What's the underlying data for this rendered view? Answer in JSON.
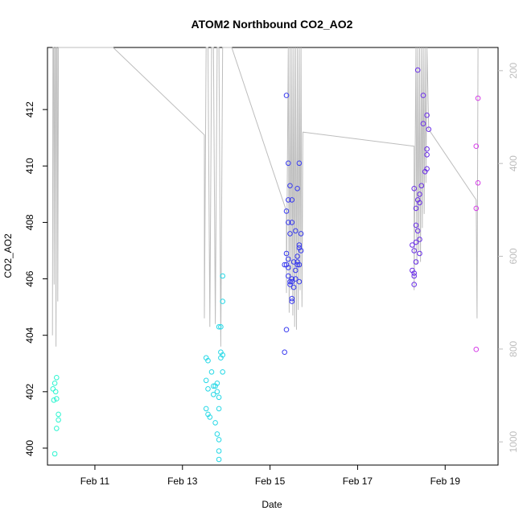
{
  "chart_data": {
    "type": "scatter",
    "title": "ATOM2 Northbound CO2_AO2",
    "xlabel": "Date",
    "ylabel": "CO2_AO2",
    "x_start": "2016-02-09T22:00",
    "x_end": "2016-02-20T05:00",
    "x_ticks": [
      {
        "label": "Feb 11",
        "date": "2016-02-11"
      },
      {
        "label": "Feb 13",
        "date": "2016-02-13"
      },
      {
        "label": "Feb 15",
        "date": "2016-02-15"
      },
      {
        "label": "Feb 17",
        "date": "2016-02-17"
      },
      {
        "label": "Feb 19",
        "date": "2016-02-19"
      }
    ],
    "ylim": [
      399.4,
      414.2
    ],
    "y_ticks": [
      400,
      402,
      404,
      406,
      408,
      410,
      412
    ],
    "right_axis": {
      "ylim": [
        1050,
        150
      ],
      "ticks": [
        200,
        400,
        600,
        800,
        1000
      ],
      "color": "#bdbdbd"
    },
    "points": [
      {
        "x": "2016-02-10T01:00",
        "y": 402.1,
        "color": "#2af5d0"
      },
      {
        "x": "2016-02-10T01:30",
        "y": 401.7,
        "color": "#2af5d0"
      },
      {
        "x": "2016-02-10T02:00",
        "y": 402.3,
        "color": "#2af5d0"
      },
      {
        "x": "2016-02-10T02:30",
        "y": 402.0,
        "color": "#2af5d0"
      },
      {
        "x": "2016-02-10T03:00",
        "y": 401.75,
        "color": "#2af5d0"
      },
      {
        "x": "2016-02-10T02:00",
        "y": 399.8,
        "color": "#2af5d0"
      },
      {
        "x": "2016-02-10T03:00",
        "y": 402.5,
        "color": "#2af5d0"
      },
      {
        "x": "2016-02-10T04:00",
        "y": 401.2,
        "color": "#2af5d0"
      },
      {
        "x": "2016-02-10T04:00",
        "y": 401.0,
        "color": "#2af5d0"
      },
      {
        "x": "2016-02-10T03:00",
        "y": 400.7,
        "color": "#2af5d0"
      },
      {
        "x": "2016-02-13T13:00",
        "y": 403.2,
        "color": "#25d8e6"
      },
      {
        "x": "2016-02-13T14:00",
        "y": 403.1,
        "color": "#25d8e6"
      },
      {
        "x": "2016-02-13T13:00",
        "y": 402.4,
        "color": "#25d8e6"
      },
      {
        "x": "2016-02-13T14:00",
        "y": 402.1,
        "color": "#25d8e6"
      },
      {
        "x": "2016-02-13T13:00",
        "y": 401.4,
        "color": "#25d8e6"
      },
      {
        "x": "2016-02-13T14:00",
        "y": 401.2,
        "color": "#25d8e6"
      },
      {
        "x": "2016-02-13T15:00",
        "y": 401.1,
        "color": "#25d8e6"
      },
      {
        "x": "2016-02-13T16:00",
        "y": 402.7,
        "color": "#25d8e6"
      },
      {
        "x": "2016-02-13T17:00",
        "y": 402.2,
        "color": "#25d8e6"
      },
      {
        "x": "2016-02-13T18:00",
        "y": 402.2,
        "color": "#25d8e6"
      },
      {
        "x": "2016-02-13T17:00",
        "y": 401.9,
        "color": "#25d8e6"
      },
      {
        "x": "2016-02-13T19:00",
        "y": 402.3,
        "color": "#25d8e6"
      },
      {
        "x": "2016-02-13T19:00",
        "y": 402.0,
        "color": "#25d8e6"
      },
      {
        "x": "2016-02-13T20:00",
        "y": 401.8,
        "color": "#25d8e6"
      },
      {
        "x": "2016-02-13T18:00",
        "y": 400.9,
        "color": "#25d8e6"
      },
      {
        "x": "2016-02-13T20:00",
        "y": 401.4,
        "color": "#25d8e6"
      },
      {
        "x": "2016-02-13T19:00",
        "y": 400.5,
        "color": "#25d8e6"
      },
      {
        "x": "2016-02-13T20:00",
        "y": 400.3,
        "color": "#25d8e6"
      },
      {
        "x": "2016-02-13T20:00",
        "y": 399.9,
        "color": "#25d8e6"
      },
      {
        "x": "2016-02-13T20:00",
        "y": 399.6,
        "color": "#25d8e6"
      },
      {
        "x": "2016-02-13T20:00",
        "y": 404.3,
        "color": "#25d8e6"
      },
      {
        "x": "2016-02-13T21:00",
        "y": 404.3,
        "color": "#25d8e6"
      },
      {
        "x": "2016-02-13T21:00",
        "y": 403.4,
        "color": "#25d8e6"
      },
      {
        "x": "2016-02-13T22:00",
        "y": 403.3,
        "color": "#25d8e6"
      },
      {
        "x": "2016-02-13T21:00",
        "y": 403.2,
        "color": "#25d8e6"
      },
      {
        "x": "2016-02-13T22:00",
        "y": 405.2,
        "color": "#25d8e6"
      },
      {
        "x": "2016-02-13T22:00",
        "y": 406.1,
        "color": "#25d8e6"
      },
      {
        "x": "2016-02-13T22:00",
        "y": 402.7,
        "color": "#25d8e6"
      },
      {
        "x": "2016-02-15T09:00",
        "y": 412.5,
        "color": "#3a3cf0"
      },
      {
        "x": "2016-02-15T10:00",
        "y": 410.1,
        "color": "#3a3cf0"
      },
      {
        "x": "2016-02-15T11:00",
        "y": 409.3,
        "color": "#3a3cf0"
      },
      {
        "x": "2016-02-15T10:00",
        "y": 408.8,
        "color": "#3a3cf0"
      },
      {
        "x": "2016-02-15T12:00",
        "y": 408.8,
        "color": "#3a3cf0"
      },
      {
        "x": "2016-02-15T09:00",
        "y": 408.4,
        "color": "#3a3cf0"
      },
      {
        "x": "2016-02-15T10:00",
        "y": 408.0,
        "color": "#3a3cf0"
      },
      {
        "x": "2016-02-15T12:00",
        "y": 408.0,
        "color": "#3a3cf0"
      },
      {
        "x": "2016-02-15T11:00",
        "y": 407.6,
        "color": "#3a3cf0"
      },
      {
        "x": "2016-02-15T09:00",
        "y": 406.9,
        "color": "#3a3cf0"
      },
      {
        "x": "2016-02-15T10:00",
        "y": 406.7,
        "color": "#3a3cf0"
      },
      {
        "x": "2016-02-15T08:00",
        "y": 406.5,
        "color": "#3a3cf0"
      },
      {
        "x": "2016-02-15T09:00",
        "y": 406.5,
        "color": "#3a3cf0"
      },
      {
        "x": "2016-02-15T10:00",
        "y": 406.4,
        "color": "#3a3cf0"
      },
      {
        "x": "2016-02-15T10:00",
        "y": 406.1,
        "color": "#3a3cf0"
      },
      {
        "x": "2016-02-15T11:00",
        "y": 405.9,
        "color": "#3a3cf0"
      },
      {
        "x": "2016-02-15T11:00",
        "y": 405.8,
        "color": "#3a3cf0"
      },
      {
        "x": "2016-02-15T12:00",
        "y": 406.0,
        "color": "#3a3cf0"
      },
      {
        "x": "2016-02-15T12:00",
        "y": 405.9,
        "color": "#3a3cf0"
      },
      {
        "x": "2016-02-15T13:00",
        "y": 405.7,
        "color": "#3a3cf0"
      },
      {
        "x": "2016-02-15T14:00",
        "y": 406.0,
        "color": "#3a3cf0"
      },
      {
        "x": "2016-02-15T14:00",
        "y": 406.3,
        "color": "#3a3cf0"
      },
      {
        "x": "2016-02-15T15:00",
        "y": 406.5,
        "color": "#3a3cf0"
      },
      {
        "x": "2016-02-15T15:00",
        "y": 406.6,
        "color": "#3a3cf0"
      },
      {
        "x": "2016-02-15T16:00",
        "y": 406.5,
        "color": "#3a3cf0"
      },
      {
        "x": "2016-02-15T13:00",
        "y": 406.6,
        "color": "#3a3cf0"
      },
      {
        "x": "2016-02-15T15:00",
        "y": 406.8,
        "color": "#3a3cf0"
      },
      {
        "x": "2016-02-15T16:00",
        "y": 407.2,
        "color": "#3a3cf0"
      },
      {
        "x": "2016-02-15T16:00",
        "y": 407.1,
        "color": "#3a3cf0"
      },
      {
        "x": "2016-02-15T17:00",
        "y": 407.0,
        "color": "#3a3cf0"
      },
      {
        "x": "2016-02-15T17:00",
        "y": 407.6,
        "color": "#3a3cf0"
      },
      {
        "x": "2016-02-15T14:00",
        "y": 407.7,
        "color": "#3a3cf0"
      },
      {
        "x": "2016-02-15T16:00",
        "y": 405.9,
        "color": "#3a3cf0"
      },
      {
        "x": "2016-02-15T15:00",
        "y": 409.2,
        "color": "#3a3cf0"
      },
      {
        "x": "2016-02-15T16:00",
        "y": 410.1,
        "color": "#3a3cf0"
      },
      {
        "x": "2016-02-15T12:00",
        "y": 405.3,
        "color": "#3a3cf0"
      },
      {
        "x": "2016-02-15T12:00",
        "y": 405.2,
        "color": "#3a3cf0"
      },
      {
        "x": "2016-02-15T09:00",
        "y": 404.2,
        "color": "#3a3cf0"
      },
      {
        "x": "2016-02-15T08:00",
        "y": 403.4,
        "color": "#3a3cf0"
      },
      {
        "x": "2016-02-18T09:00",
        "y": 413.4,
        "color": "#6a2ee8"
      },
      {
        "x": "2016-02-18T12:00",
        "y": 412.5,
        "color": "#6a2ee8"
      },
      {
        "x": "2016-02-18T12:00",
        "y": 411.5,
        "color": "#6a2ee8"
      },
      {
        "x": "2016-02-18T14:00",
        "y": 411.8,
        "color": "#6a2ee8"
      },
      {
        "x": "2016-02-18T15:00",
        "y": 411.3,
        "color": "#6a2ee8"
      },
      {
        "x": "2016-02-18T14:00",
        "y": 410.6,
        "color": "#6a2ee8"
      },
      {
        "x": "2016-02-18T14:00",
        "y": 410.4,
        "color": "#6a2ee8"
      },
      {
        "x": "2016-02-18T13:00",
        "y": 409.8,
        "color": "#6a2ee8"
      },
      {
        "x": "2016-02-18T14:00",
        "y": 409.9,
        "color": "#6a2ee8"
      },
      {
        "x": "2016-02-18T11:00",
        "y": 409.3,
        "color": "#6a2ee8"
      },
      {
        "x": "2016-02-18T07:00",
        "y": 409.2,
        "color": "#6a2ee8"
      },
      {
        "x": "2016-02-18T10:00",
        "y": 409.0,
        "color": "#6a2ee8"
      },
      {
        "x": "2016-02-18T09:00",
        "y": 408.8,
        "color": "#6a2ee8"
      },
      {
        "x": "2016-02-18T10:00",
        "y": 408.7,
        "color": "#6a2ee8"
      },
      {
        "x": "2016-02-18T08:00",
        "y": 408.5,
        "color": "#6a2ee8"
      },
      {
        "x": "2016-02-18T08:00",
        "y": 407.9,
        "color": "#6a2ee8"
      },
      {
        "x": "2016-02-18T09:00",
        "y": 407.7,
        "color": "#6a2ee8"
      },
      {
        "x": "2016-02-18T10:00",
        "y": 407.4,
        "color": "#6a2ee8"
      },
      {
        "x": "2016-02-18T08:00",
        "y": 407.3,
        "color": "#6a2ee8"
      },
      {
        "x": "2016-02-18T06:00",
        "y": 407.2,
        "color": "#6a2ee8"
      },
      {
        "x": "2016-02-18T07:00",
        "y": 407.0,
        "color": "#6a2ee8"
      },
      {
        "x": "2016-02-18T10:00",
        "y": 406.9,
        "color": "#6a2ee8"
      },
      {
        "x": "2016-02-18T08:00",
        "y": 406.6,
        "color": "#6a2ee8"
      },
      {
        "x": "2016-02-18T06:00",
        "y": 406.3,
        "color": "#6a2ee8"
      },
      {
        "x": "2016-02-18T07:00",
        "y": 406.2,
        "color": "#6a2ee8"
      },
      {
        "x": "2016-02-18T07:00",
        "y": 406.1,
        "color": "#6a2ee8"
      },
      {
        "x": "2016-02-18T07:00",
        "y": 405.8,
        "color": "#6a2ee8"
      },
      {
        "x": "2016-02-19T18:00",
        "y": 412.4,
        "color": "#d63ee8"
      },
      {
        "x": "2016-02-19T17:00",
        "y": 410.7,
        "color": "#d63ee8"
      },
      {
        "x": "2016-02-19T18:00",
        "y": 409.4,
        "color": "#d63ee8"
      },
      {
        "x": "2016-02-19T17:00",
        "y": 408.5,
        "color": "#d63ee8"
      },
      {
        "x": "2016-02-19T17:00",
        "y": 403.5,
        "color": "#d63ee8"
      }
    ],
    "grey_line_color": "#bdbdbd",
    "grey_line": [
      [
        "2016-02-10T00:45",
        404.0
      ],
      [
        "2016-02-10T01:00",
        414.2
      ],
      [
        "2016-02-10T01:20",
        414.2
      ],
      [
        "2016-02-10T01:40",
        405.8
      ],
      [
        "2016-02-10T02:00",
        414.2
      ],
      [
        "2016-02-10T02:20",
        414.2
      ],
      [
        "2016-02-10T02:40",
        403.6
      ],
      [
        "2016-02-10T03:00",
        414.2
      ],
      [
        "2016-02-10T03:20",
        414.2
      ],
      [
        "2016-02-10T03:40",
        405.2
      ],
      [
        "2016-02-10T04:00",
        414.2
      ],
      [
        "2016-02-11T10:00",
        414.2
      ],
      [
        "2016-02-13T12:00",
        411.1
      ],
      [
        "2016-02-13T12:00",
        404.6
      ],
      [
        "2016-02-13T13:00",
        414.2
      ],
      [
        "2016-02-13T14:00",
        414.2
      ],
      [
        "2016-02-13T15:00",
        404.3
      ],
      [
        "2016-02-13T16:00",
        414.2
      ],
      [
        "2016-02-13T17:00",
        414.2
      ],
      [
        "2016-02-13T18:00",
        404.4
      ],
      [
        "2016-02-13T19:00",
        414.2
      ],
      [
        "2016-02-13T20:00",
        414.2
      ],
      [
        "2016-02-13T21:00",
        403.6
      ],
      [
        "2016-02-13T22:00",
        414.2
      ],
      [
        "2016-02-14T03:00",
        414.2
      ],
      [
        "2016-02-15T09:00",
        408.4
      ],
      [
        "2016-02-15T09:00",
        405.5
      ],
      [
        "2016-02-15T10:00",
        414.2
      ],
      [
        "2016-02-15T10:30",
        404.8
      ],
      [
        "2016-02-15T11:00",
        414.2
      ],
      [
        "2016-02-15T11:30",
        405.6
      ],
      [
        "2016-02-15T12:00",
        414.2
      ],
      [
        "2016-02-15T12:30",
        404.7
      ],
      [
        "2016-02-15T13:00",
        414.2
      ],
      [
        "2016-02-15T13:30",
        404.3
      ],
      [
        "2016-02-15T14:00",
        414.2
      ],
      [
        "2016-02-15T14:30",
        404.2
      ],
      [
        "2016-02-15T15:00",
        414.2
      ],
      [
        "2016-02-15T15:30",
        404.9
      ],
      [
        "2016-02-15T16:00",
        414.2
      ],
      [
        "2016-02-15T16:30",
        405.6
      ],
      [
        "2016-02-15T17:00",
        414.2
      ],
      [
        "2016-02-15T17:30",
        405.0
      ],
      [
        "2016-02-15T18:00",
        411.2
      ],
      [
        "2016-02-18T07:00",
        410.7
      ],
      [
        "2016-02-18T07:00",
        405.6
      ],
      [
        "2016-02-18T08:00",
        414.2
      ],
      [
        "2016-02-18T08:30",
        406.5
      ],
      [
        "2016-02-18T09:00",
        414.2
      ],
      [
        "2016-02-18T09:30",
        407.0
      ],
      [
        "2016-02-18T10:00",
        414.2
      ],
      [
        "2016-02-18T10:30",
        406.6
      ],
      [
        "2016-02-18T11:00",
        414.2
      ],
      [
        "2016-02-18T11:30",
        407.8
      ],
      [
        "2016-02-18T12:00",
        414.2
      ],
      [
        "2016-02-18T12:30",
        408.3
      ],
      [
        "2016-02-18T13:00",
        414.2
      ],
      [
        "2016-02-18T13:30",
        409.4
      ],
      [
        "2016-02-18T14:00",
        414.2
      ],
      [
        "2016-02-18T15:00",
        411.3
      ],
      [
        "2016-02-19T17:00",
        408.8
      ],
      [
        "2016-02-19T17:30",
        404.6
      ],
      [
        "2016-02-19T18:00",
        414.2
      ]
    ]
  }
}
